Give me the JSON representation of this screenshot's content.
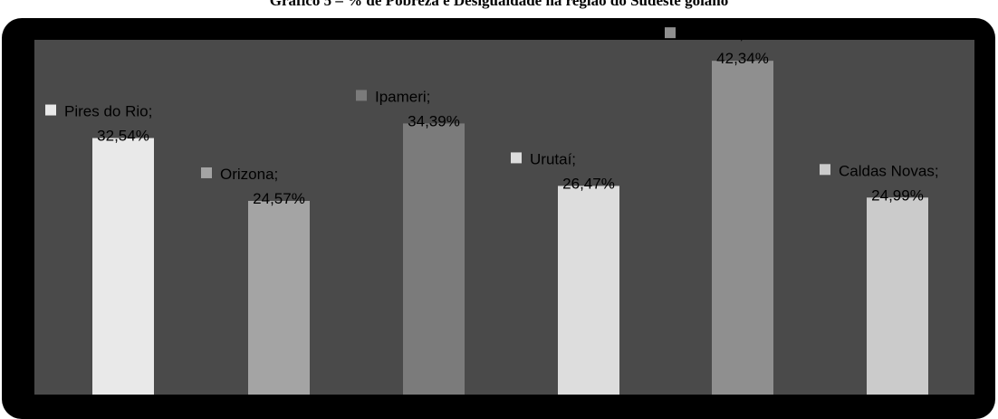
{
  "title": "Gráfico 5 – % de Pobreza e Desigualdade na região do Sudeste goiano",
  "chart_data": {
    "type": "bar",
    "title": "Gráfico 5 – % de Pobreza e Desigualdade na região do Sudeste goiano",
    "categories": [
      "Pires do Rio",
      "Orizona",
      "Ipameri",
      "Urutaí",
      "Palmelo",
      "Caldas Novas"
    ],
    "values": [
      32.54,
      24.57,
      34.39,
      26.47,
      42.34,
      24.99
    ],
    "value_labels": [
      "32,54%",
      "24,57%",
      "34,39%",
      "26,47%",
      "42,34%",
      "24,99%"
    ],
    "category_labels": [
      "Pires do Rio;",
      "Orizona;",
      "Ipameri;",
      "Urutaí;",
      "Palmelo;",
      "Caldas Novas;"
    ],
    "colors": [
      "#e9e9e9",
      "#a4a4a4",
      "#7b7b7b",
      "#dddddd",
      "#8f8f8f",
      "#cbcbcb"
    ],
    "ylim": [
      0,
      45
    ],
    "grid": false,
    "xlabel": "",
    "ylabel": "",
    "background_outer": "#000000",
    "background_plot": "#4a4a4a"
  }
}
